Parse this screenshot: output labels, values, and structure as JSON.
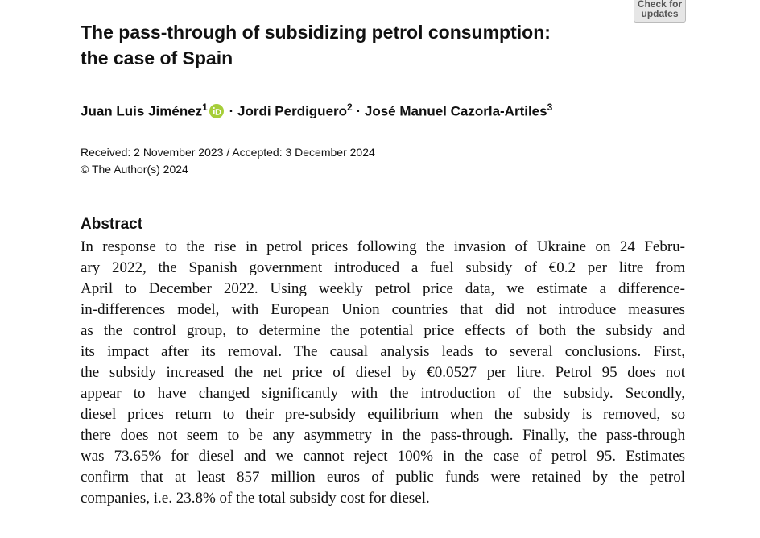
{
  "badge": {
    "lines": [
      "Check for",
      "updates"
    ]
  },
  "header": {
    "title_lines": [
      "The pass-through of subsidizing petrol consumption:",
      "the case of Spain"
    ],
    "authors": [
      {
        "name": "Juan Luis Jiménez",
        "affiliation": "1"
      },
      {
        "name": "Jordi Perdiguero",
        "affiliation": "2"
      },
      {
        "name": "José Manuel Cazorla-Artiles",
        "affiliation": "3"
      }
    ],
    "separator": "·",
    "dates": "Received: 2 November 2023 / Accepted: 3 December 2024",
    "copyright": "© The Author(s) 2024"
  },
  "abstract": {
    "heading": "Abstract",
    "lines": [
      "In response to the rise in petrol prices following the invasion of Ukraine on 24 Febru-",
      "ary 2022, the Spanish government introduced a fuel subsidy of €0.2 per litre from",
      "April to December 2022. Using weekly petrol price data, we estimate a difference-",
      "in-differences model, with European Union countries that did not introduce measures",
      "as the control group, to determine the potential price effects of both the subsidy and",
      "its impact after its removal. The causal analysis leads to several conclusions. First,",
      "the subsidy increased the net price of diesel by €0.0527 per litre. Petrol 95 does not",
      "appear to have changed significantly with the introduction of the subsidy. Secondly,",
      "diesel prices return to their pre-subsidy equilibrium when the subsidy is removed, so",
      "there does not seem to be any asymmetry in the pass-through. Finally, the pass-through",
      "was 73.65% for diesel and we cannot reject 100% in the case of petrol 95. Estimates",
      "confirm that at least 857 million euros of public funds were retained by the petrol",
      "companies, i.e. 23.8% of the total subsidy cost for diesel."
    ]
  }
}
